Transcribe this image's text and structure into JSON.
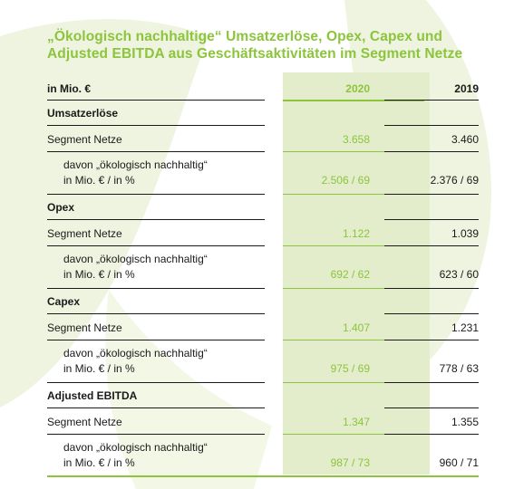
{
  "title": {
    "line1": "„Ökologisch nachhaltige“ Umsatzerlöse, Opex, Capex und",
    "line2": "Adjusted EBITDA aus Geschäftsaktivitäten im Segment Netze"
  },
  "header": {
    "unit": "in Mio. €",
    "col_2020": "2020",
    "col_2019": "2019"
  },
  "sections": [
    {
      "heading": "Umsatzerlöse",
      "segment": {
        "label": "Segment Netze",
        "v2020": "3.658",
        "v2019": "3.460"
      },
      "sub": {
        "label1": "davon „ökologisch nachhaltig“",
        "label2": "in Mio. € / in %",
        "v2020": "2.506 / 69",
        "v2019": "2.376 / 69"
      }
    },
    {
      "heading": "Opex",
      "segment": {
        "label": "Segment Netze",
        "v2020": "1.122",
        "v2019": "1.039"
      },
      "sub": {
        "label1": "davon „ökologisch nachhaltig“",
        "label2": "in Mio. € / in %",
        "v2020": "692 / 62",
        "v2019": "623 / 60"
      }
    },
    {
      "heading": "Capex",
      "segment": {
        "label": "Segment Netze",
        "v2020": "1.407",
        "v2019": "1.231"
      },
      "sub": {
        "label1": "davon „ökologisch nachhaltig“",
        "label2": "in Mio. € / in %",
        "v2020": "975 / 69",
        "v2019": "778 / 63"
      }
    },
    {
      "heading": "Adjusted EBITDA",
      "segment": {
        "label": "Segment Netze",
        "v2020": "1.347",
        "v2019": "1.355"
      },
      "sub": {
        "label1": "davon „ökologisch nachhaltig“",
        "label2": "in Mio. € / in %",
        "v2020": "987 / 73",
        "v2019": "960 / 71"
      }
    }
  ],
  "colors": {
    "accent_green": "#8cc43c",
    "column_fill": "#e3edcc",
    "leaf_watermark": "#eef4df"
  }
}
